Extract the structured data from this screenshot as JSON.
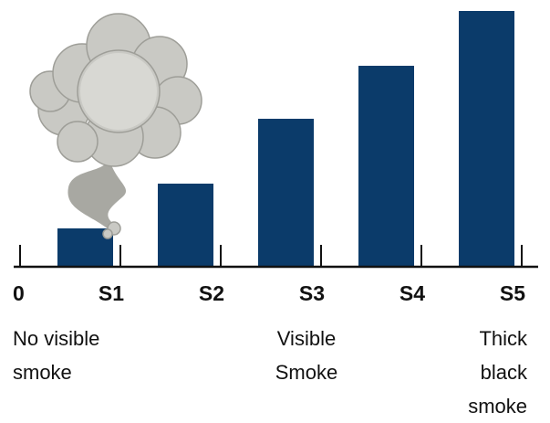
{
  "chart_data": {
    "type": "bar",
    "x": [
      1,
      2,
      3,
      4,
      5
    ],
    "values": [
      42,
      91,
      162,
      220,
      280
    ],
    "color": "#0b3b6a",
    "xlim": [
      0,
      5
    ],
    "xticks": [
      {
        "value": 0,
        "label": "0"
      },
      {
        "value": 1,
        "label": "S1"
      },
      {
        "value": 2,
        "label": "S2"
      },
      {
        "value": 3,
        "label": "S3"
      },
      {
        "value": 4,
        "label": "S4"
      },
      {
        "value": 5,
        "label": "S5"
      }
    ],
    "ylim": [
      0,
      280
    ],
    "annotations": [
      {
        "x": 0,
        "align": "start",
        "lines": [
          "No visible",
          "smoke"
        ]
      },
      {
        "x": 3,
        "align": "middle",
        "lines": [
          "Visible",
          "Smoke"
        ]
      },
      {
        "x": 5,
        "align": "end",
        "lines": [
          "Thick",
          "black",
          "smoke"
        ]
      }
    ]
  }
}
